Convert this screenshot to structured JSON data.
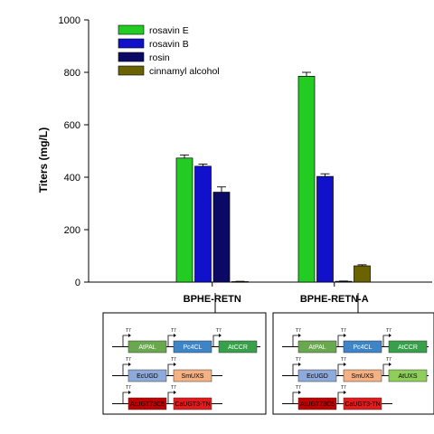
{
  "chart_data": {
    "type": "bar",
    "ylabel": "Titers (mg/L)",
    "ylim": [
      0,
      1000
    ],
    "yticks": [
      0,
      200,
      400,
      600,
      800,
      1000
    ],
    "categories": [
      "BPHE-RETN",
      "BPHE-RETN-A"
    ],
    "legend_position": "top-left",
    "series": [
      {
        "name": "rosavin E",
        "color": "#22cc22",
        "values": [
          473,
          785
        ],
        "errors": [
          12,
          15
        ]
      },
      {
        "name": "rosavin B",
        "color": "#1111cc",
        "values": [
          442,
          403
        ],
        "errors": [
          8,
          10
        ]
      },
      {
        "name": "rosin",
        "color": "#0a0a66",
        "values": [
          343,
          3
        ],
        "errors": [
          20,
          1
        ]
      },
      {
        "name": "cinnamyl alcohol",
        "color": "#6b6300",
        "values": [
          2,
          62
        ],
        "errors": [
          1,
          4
        ]
      }
    ]
  },
  "constructs": [
    {
      "name": "BPHE-RETN",
      "rows": [
        {
          "genes": [
            {
              "label": "AtPAL",
              "fill": "#6aa84f",
              "text_color": "#ffffff"
            },
            {
              "label": "Pc4CL",
              "fill": "#3d85c6",
              "text_color": "#ffffff"
            },
            {
              "label": "AtCCR",
              "fill": "#38a04a",
              "text_color": "#ffffff"
            }
          ]
        },
        {
          "genes": [
            {
              "label": "EcUGD",
              "fill": "#8eaadb",
              "text_color": "#000000"
            },
            {
              "label": "SmUXS",
              "fill": "#f4b183",
              "text_color": "#000000"
            }
          ]
        },
        {
          "genes": [
            {
              "label": "AtUGT73C5",
              "fill": "#c00000",
              "text_color": "#000000"
            },
            {
              "label": "CaUGT3-TN",
              "fill": "#e31a1c",
              "text_color": "#000000"
            }
          ]
        }
      ]
    },
    {
      "name": "BPHE-RETN-A",
      "rows": [
        {
          "genes": [
            {
              "label": "AtPAL",
              "fill": "#6aa84f",
              "text_color": "#ffffff"
            },
            {
              "label": "Pc4CL",
              "fill": "#3d85c6",
              "text_color": "#ffffff"
            },
            {
              "label": "AtCCR",
              "fill": "#38a04a",
              "text_color": "#ffffff"
            }
          ]
        },
        {
          "genes": [
            {
              "label": "EcUGD",
              "fill": "#8eaadb",
              "text_color": "#000000"
            },
            {
              "label": "SmUXS",
              "fill": "#f4b183",
              "text_color": "#000000"
            },
            {
              "label": "AtUXS",
              "fill": "#8fce5a",
              "text_color": "#000000"
            }
          ]
        },
        {
          "genes": [
            {
              "label": "AtUGT73C5",
              "fill": "#c00000",
              "text_color": "#000000"
            },
            {
              "label": "CaUGT3-TN",
              "fill": "#e31a1c",
              "text_color": "#000000"
            }
          ]
        }
      ]
    }
  ],
  "promoter_label": "T7"
}
